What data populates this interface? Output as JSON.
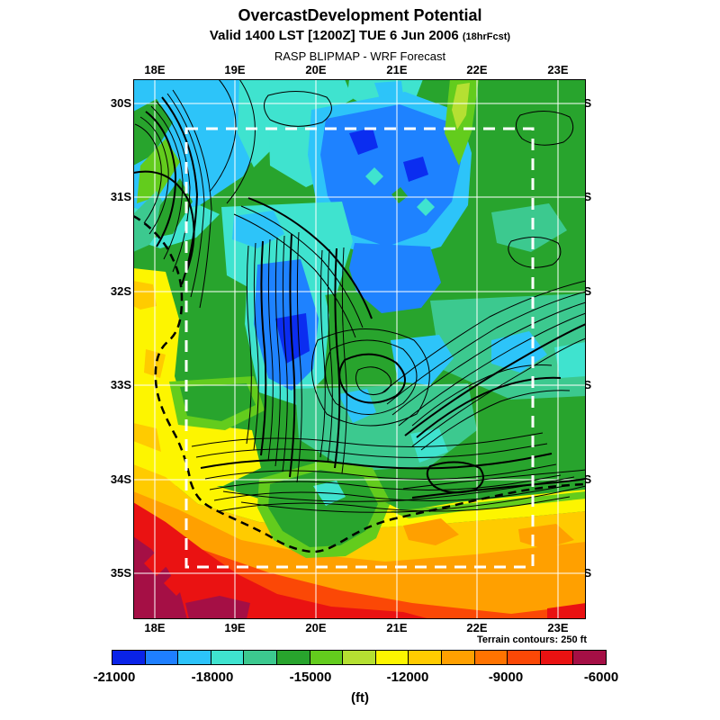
{
  "header": {
    "title": "OvercastDevelopment Potential",
    "valid_line": "Valid 1400 LST [1200Z] TUE 6 Jun 2006",
    "fcst_tag": "(18hrFcst)",
    "model_line": "RASP BLIPMAP - WRF Forecast"
  },
  "map": {
    "lon_ticks": [
      "18E",
      "19E",
      "20E",
      "21E",
      "22E",
      "23E"
    ],
    "lat_ticks": [
      "30S",
      "31S",
      "32S",
      "33S",
      "34S",
      "35S"
    ],
    "terrain_note": "Terrain contours: 250 ft"
  },
  "colorbar": {
    "ticks": [
      "-21000",
      "-18000",
      "-15000",
      "-12000",
      "-9000",
      "-6000"
    ],
    "units_label": "(ft)",
    "colors": [
      "#0a23e8",
      "#1e7fff",
      "#2cc3fa",
      "#3fe3cf",
      "#3cc98f",
      "#28a42d",
      "#63cc1d",
      "#b5e032",
      "#fdf500",
      "#ffcb00",
      "#ffa000",
      "#ff7300",
      "#fb4806",
      "#ea1212",
      "#a50f45"
    ]
  },
  "chart_data": {
    "type": "heatmap",
    "subtype": "filled-contour meteorological forecast map",
    "title": "OvercastDevelopment Potential",
    "valid_time": "Valid 1400 LST [1200Z] TUE 6 Jun 2006 (18hrFcst)",
    "source": "RASP BLIPMAP - WRF Forecast",
    "x": {
      "label": "longitude",
      "ticks": [
        "18E",
        "19E",
        "20E",
        "21E",
        "22E",
        "23E"
      ]
    },
    "y": {
      "label": "latitude",
      "ticks": [
        "30S",
        "31S",
        "32S",
        "33S",
        "34S",
        "35S"
      ]
    },
    "scale": {
      "units": "ft",
      "min": -21000,
      "max": -6000,
      "cell_step": 1000,
      "tick_values": [
        -21000,
        -18000,
        -15000,
        -12000,
        -9000,
        -6000
      ],
      "colors": [
        "#0a23e8",
        "#1e7fff",
        "#2cc3fa",
        "#3fe3cf",
        "#3cc98f",
        "#28a42d",
        "#63cc1d",
        "#b5e032",
        "#fdf500",
        "#ffcb00",
        "#ffa000",
        "#ff7300",
        "#fb4806",
        "#ea1212",
        "#a50f45"
      ]
    },
    "terrain_contour_interval_ft": 250,
    "overlays": [
      "white lat/lon graticule",
      "white dashed inner model-domain box",
      "black dashed coastline of Western Cape",
      "black terrain contour lines"
    ],
    "sampled_values_ft": {
      "note": "values estimated from fill colors at graticule intersections (lat rows x lon cols)",
      "lon": [
        "18E",
        "19E",
        "20E",
        "21E",
        "22E",
        "23E"
      ],
      "lat": [
        "30S",
        "31S",
        "32S",
        "33S",
        "34S",
        "35S"
      ],
      "grid": [
        [
          -17500,
          -17000,
          -19500,
          -16000,
          -15500,
          -15500
        ],
        [
          -15000,
          -16500,
          -19500,
          -16200,
          -15500,
          -15500
        ],
        [
          -12500,
          -15000,
          -16500,
          -15300,
          -16000,
          -15400
        ],
        [
          -12300,
          -13500,
          -14800,
          -15800,
          -17000,
          -15200
        ],
        [
          -10500,
          -11400,
          -15500,
          -14800,
          -12400,
          -11500
        ],
        [
          -6500,
          -7600,
          -9800,
          -11000,
          -11200,
          -10000
        ]
      ]
    },
    "legend_position": "bottom",
    "grid": "on"
  }
}
